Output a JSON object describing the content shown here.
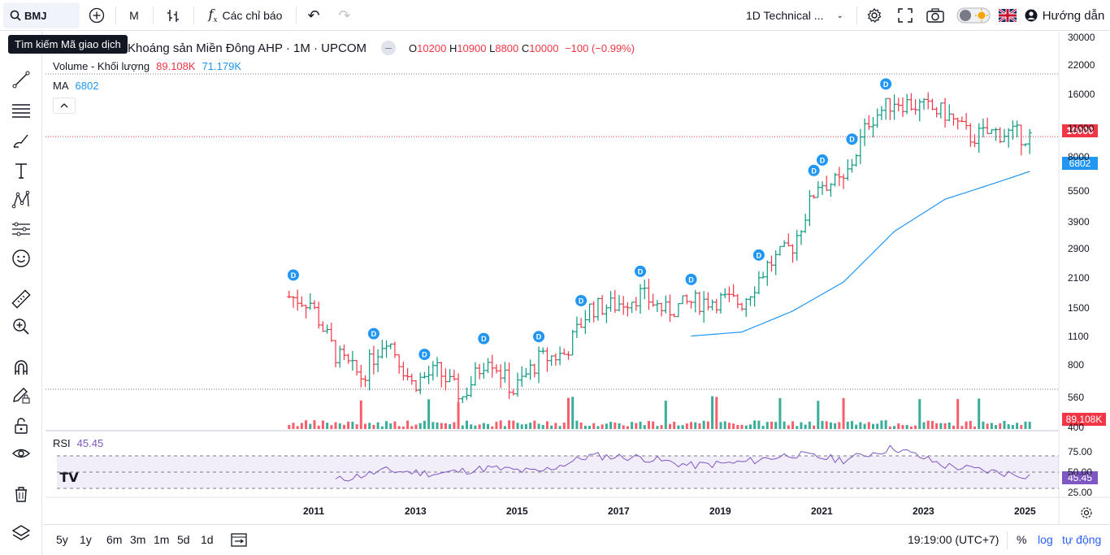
{
  "toolbar": {
    "symbol": "BMJ",
    "interval": "M",
    "indicators_label": "Các chỉ báo",
    "layout_name": "1D Technical ...",
    "help_label": "Hướng dẫn"
  },
  "tooltip": "Tìm kiếm Mã giao dịch",
  "legend": {
    "title": "Khoáng sản Miền Đông AHP · 1M · UPCOM",
    "o_label": "O",
    "o_val": "10200",
    "h_label": "H",
    "h_val": "10900",
    "l_label": "L",
    "l_val": "8800",
    "c_label": "C",
    "c_val": "10000",
    "change": "−100 (−0.99%)",
    "volume_label": "Volume - Khối lượng",
    "volume_val1": "89.108K",
    "volume_val2": "71.179K",
    "ma_label": "MA",
    "ma_val": "6802",
    "rsi_label": "RSI",
    "rsi_val": "45.45"
  },
  "price_axis": [
    "30000",
    "22000",
    "16000",
    "11000",
    "8000",
    "5500",
    "3900",
    "2900",
    "2100",
    "1500",
    "1100",
    "800",
    "560",
    "400"
  ],
  "rsi_axis": [
    "75.00",
    "50.00",
    "25.00"
  ],
  "tags": {
    "price": "10000",
    "ma": "6802",
    "volume": "89.108K",
    "rsi": "45.45"
  },
  "time_axis": [
    "2011",
    "2013",
    "2015",
    "2017",
    "2019",
    "2021",
    "2023",
    "2025"
  ],
  "bottom": {
    "ranges": [
      "5y",
      "1y",
      "6m",
      "3m",
      "1m",
      "5d",
      "1d"
    ],
    "clock": "19:19:00 (UTC+7)",
    "percent": "%",
    "log": "log",
    "auto": "tự động"
  },
  "colors": {
    "up": "#089981",
    "down": "#f23645",
    "ma": "#2196f3",
    "rsi": "#7e57c2",
    "accent": "#2962ff"
  },
  "chart_data": {
    "type": "candlestick",
    "title": "Khoáng sản Miền Đông AHP · 1M · UPCOM",
    "x_range": [
      "2010-07",
      "2025-02"
    ],
    "y_scale": "log",
    "ylim": [
      400,
      30000
    ],
    "last_bar": {
      "open": 10200,
      "high": 10900,
      "low": 8800,
      "close": 10000
    },
    "close_series": [
      {
        "x": "2010-07",
        "y": 1700
      },
      {
        "x": "2010-12",
        "y": 1600
      },
      {
        "x": "2011-06",
        "y": 900
      },
      {
        "x": "2011-12",
        "y": 700
      },
      {
        "x": "2012-06",
        "y": 1100
      },
      {
        "x": "2012-12",
        "y": 650
      },
      {
        "x": "2013-06",
        "y": 750
      },
      {
        "x": "2013-12",
        "y": 560
      },
      {
        "x": "2014-06",
        "y": 900
      },
      {
        "x": "2014-12",
        "y": 600
      },
      {
        "x": "2015-06",
        "y": 850
      },
      {
        "x": "2015-12",
        "y": 900
      },
      {
        "x": "2016-06",
        "y": 1500
      },
      {
        "x": "2016-12",
        "y": 1550
      },
      {
        "x": "2017-06",
        "y": 1750
      },
      {
        "x": "2017-12",
        "y": 1450
      },
      {
        "x": "2018-06",
        "y": 1600
      },
      {
        "x": "2018-12",
        "y": 1650
      },
      {
        "x": "2019-06",
        "y": 1600
      },
      {
        "x": "2019-12",
        "y": 2400
      },
      {
        "x": "2020-06",
        "y": 3000
      },
      {
        "x": "2020-12",
        "y": 6000
      },
      {
        "x": "2021-06",
        "y": 6000
      },
      {
        "x": "2021-12",
        "y": 12000
      },
      {
        "x": "2022-06",
        "y": 15000
      },
      {
        "x": "2022-12",
        "y": 14000
      },
      {
        "x": "2023-06",
        "y": 13000
      },
      {
        "x": "2023-12",
        "y": 10000
      },
      {
        "x": "2024-06",
        "y": 10500
      },
      {
        "x": "2024-12",
        "y": 10200
      },
      {
        "x": "2025-02",
        "y": 10000
      }
    ],
    "ma_series": [
      {
        "x": "2018-06",
        "y": 1100
      },
      {
        "x": "2019-06",
        "y": 1150
      },
      {
        "x": "2020-06",
        "y": 1450
      },
      {
        "x": "2021-06",
        "y": 2000
      },
      {
        "x": "2022-06",
        "y": 3500
      },
      {
        "x": "2023-06",
        "y": 5000
      },
      {
        "x": "2024-06",
        "y": 6000
      },
      {
        "x": "2025-02",
        "y": 6802
      }
    ],
    "rsi_series": [
      {
        "x": "2011-06",
        "y": 40
      },
      {
        "x": "2012-06",
        "y": 52
      },
      {
        "x": "2013-06",
        "y": 48
      },
      {
        "x": "2014-06",
        "y": 55
      },
      {
        "x": "2015-06",
        "y": 50
      },
      {
        "x": "2016-06",
        "y": 70
      },
      {
        "x": "2017-06",
        "y": 68
      },
      {
        "x": "2018-06",
        "y": 58
      },
      {
        "x": "2019-06",
        "y": 62
      },
      {
        "x": "2020-06",
        "y": 72
      },
      {
        "x": "2021-06",
        "y": 65
      },
      {
        "x": "2022-06",
        "y": 80
      },
      {
        "x": "2023-06",
        "y": 58
      },
      {
        "x": "2024-06",
        "y": 50
      },
      {
        "x": "2025-02",
        "y": 45.45
      }
    ],
    "dividend_markers": [
      "2010-08",
      "2012-03",
      "2013-03",
      "2014-05",
      "2015-06",
      "2016-04",
      "2017-06",
      "2018-06",
      "2019-10",
      "2020-11",
      "2021-01",
      "2021-08",
      "2022-04"
    ]
  }
}
